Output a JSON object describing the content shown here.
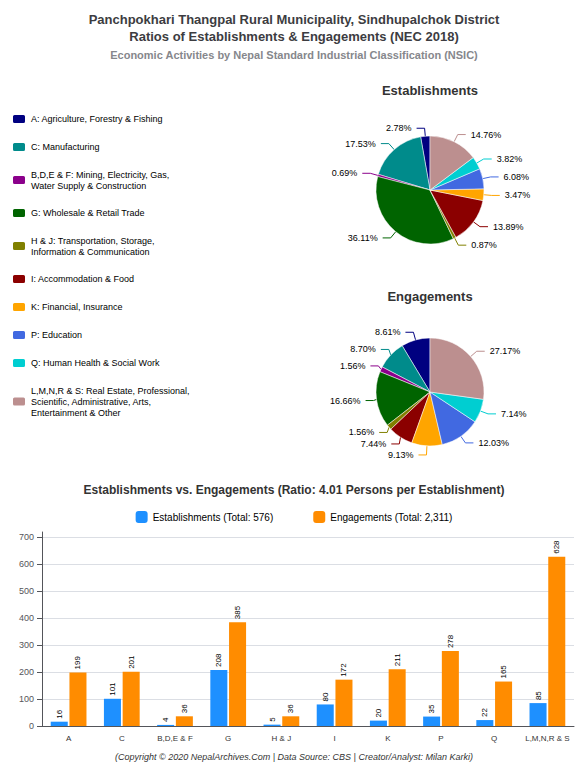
{
  "title": "Panchpokhari Thangpal Rural Municipality, Sindhupalchok District\nRatios of Establishments & Engagements (NEC 2018)",
  "subtitle": "Economic Activities by Nepal Standard Industrial Classification (NSIC)",
  "annotations": [
    "(Copyright © 2020 NepalArchives.Com | Data Source: CBS | Creator/Analyst: Milan Karki)"
  ],
  "chart_data": [
    {
      "type": "pie",
      "title": "Establishments",
      "categories": [
        "A: Agriculture, Forestry & Fishing",
        "C: Manufacturing",
        "B,D,E & F: Mining, Electricity, Gas,\nWater Supply & Construction",
        "G: Wholesale & Retail Trade",
        "H & J: Transportation, Storage,\nInformation & Communication",
        "I: Accommodation & Food",
        "K: Financial, Insurance",
        "P: Education",
        "Q: Human Health & Social Work",
        "L,M,N,R & S: Real Estate, Professional,\nScientific, Administrative, Arts,\nEntertainment & Other"
      ],
      "values": [
        2.78,
        17.53,
        0.69,
        36.11,
        0.87,
        13.89,
        3.47,
        6.08,
        3.82,
        14.76
      ],
      "value_labels": [
        "2.78%",
        "17.53%",
        "0.69%",
        "36.11%",
        "0.87%",
        "13.89%",
        "3.47%",
        "6.08%",
        "3.82%",
        "14.76%"
      ],
      "colors": [
        "#000080",
        "#008B8B",
        "#8B008B",
        "#006400",
        "#808000",
        "#8B0000",
        "#FFA500",
        "#4169E1",
        "#00CED1",
        "#BC8F8F"
      ],
      "data_labels": true,
      "legend": "left"
    },
    {
      "type": "pie",
      "title": "Engagements",
      "categories": [
        "A: Agriculture, Forestry & Fishing",
        "C: Manufacturing",
        "B,D,E & F: Mining, Electricity, Gas,\nWater Supply & Construction",
        "G: Wholesale & Retail Trade",
        "H & J: Transportation, Storage,\nInformation & Communication",
        "I: Accommodation & Food",
        "K: Financial, Insurance",
        "P: Education",
        "Q: Human Health & Social Work",
        "L,M,N,R & S: Real Estate, Professional,\nScientific, Administrative, Arts,\nEntertainment & Other"
      ],
      "values": [
        8.61,
        8.7,
        1.56,
        16.66,
        1.56,
        7.44,
        9.13,
        12.03,
        7.14,
        27.17
      ],
      "value_labels": [
        "8.61%",
        "8.70%",
        "1.56%",
        "16.66%",
        "1.56%",
        "7.44%",
        "9.13%",
        "12.03%",
        "7.14%",
        "27.17%"
      ],
      "colors": [
        "#000080",
        "#008B8B",
        "#8B008B",
        "#006400",
        "#808000",
        "#8B0000",
        "#FFA500",
        "#4169E1",
        "#00CED1",
        "#BC8F8F"
      ],
      "data_labels": true
    },
    {
      "type": "bar",
      "title": "Establishments vs. Engagements (Ratio: 4.01 Persons per Establishment)",
      "categories": [
        "A",
        "C",
        "B,D,E & F",
        "G",
        "H & J",
        "I",
        "K",
        "P",
        "Q",
        "L,M,N,R & S"
      ],
      "series": [
        {
          "name": "Establishments (Total: 576)",
          "color": "#1E90FF",
          "values": [
            16,
            101,
            4,
            208,
            5,
            80,
            20,
            35,
            22,
            85
          ]
        },
        {
          "name": "Engagements (Total: 2,311)",
          "color": "#FF8C00",
          "values": [
            199,
            201,
            36,
            385,
            36,
            172,
            211,
            278,
            165,
            628
          ]
        }
      ],
      "ylim": [
        0,
        720
      ],
      "yticks": [
        0,
        100,
        200,
        300,
        400,
        500,
        600,
        700
      ],
      "grid": true,
      "data_labels": true,
      "legend": "top"
    }
  ]
}
